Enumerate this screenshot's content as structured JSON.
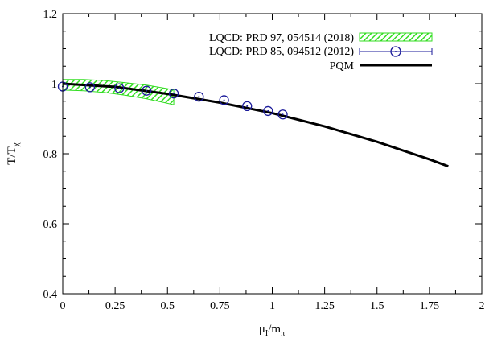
{
  "chart_data": {
    "type": "line",
    "title": "",
    "xlabel": {
      "main": "μ",
      "sub": "I",
      "sep": "/m",
      "sub2": "π"
    },
    "ylabel": {
      "main": "T/T",
      "sub": "χ"
    },
    "xlim": [
      0,
      2
    ],
    "ylim": [
      0.4,
      1.2
    ],
    "xticks": [
      0,
      0.25,
      0.5,
      0.75,
      1,
      1.25,
      1.5,
      1.75,
      2
    ],
    "xtick_labels": [
      "0",
      "0.25",
      "0.5",
      "0.75",
      "1",
      "1.25",
      "1.5",
      "1.75",
      "2"
    ],
    "yticks": [
      0.4,
      0.6,
      0.8,
      1.0,
      1.2
    ],
    "ytick_labels": [
      "0.4",
      "0.6",
      "0.8",
      "1",
      "1.2"
    ],
    "grid": false,
    "legend_position": "top-right",
    "series": [
      {
        "name": "LQCD: PRD 97, 054514 (2018)",
        "kind": "band",
        "color": "#33dd22",
        "x": [
          0,
          0.1,
          0.2,
          0.3,
          0.4,
          0.5,
          0.53
        ],
        "y_upper": [
          1.012,
          1.012,
          1.009,
          1.003,
          0.996,
          0.986,
          0.982
        ],
        "y_lower": [
          0.982,
          0.98,
          0.975,
          0.967,
          0.957,
          0.944,
          0.94
        ]
      },
      {
        "name": "LQCD: PRD 85, 094512 (2012)",
        "kind": "points",
        "color": "#1a1a9a",
        "x": [
          0.0,
          0.13,
          0.27,
          0.4,
          0.53,
          0.65,
          0.77,
          0.88,
          0.98,
          1.05
        ],
        "y": [
          0.992,
          0.99,
          0.987,
          0.98,
          0.972,
          0.963,
          0.953,
          0.936,
          0.922,
          0.912
        ]
      },
      {
        "name": "PQM",
        "kind": "line",
        "color": "#000000",
        "x": [
          0,
          0.25,
          0.5,
          0.75,
          1.0,
          1.25,
          1.5,
          1.75,
          1.84
        ],
        "y": [
          1.0,
          0.991,
          0.971,
          0.946,
          0.916,
          0.878,
          0.834,
          0.784,
          0.764
        ]
      }
    ]
  }
}
